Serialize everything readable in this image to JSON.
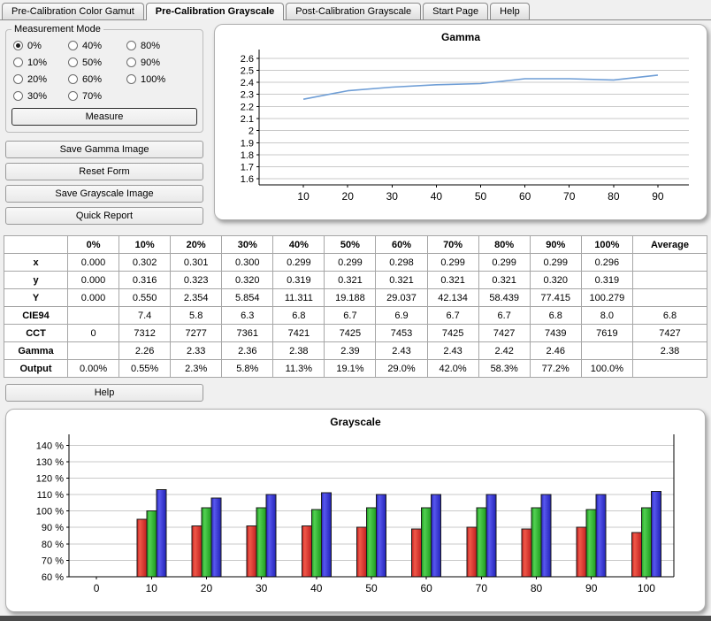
{
  "tabs": [
    {
      "label": "Pre-Calibration Color Gamut",
      "active": false
    },
    {
      "label": "Pre-Calibration Grayscale",
      "active": true
    },
    {
      "label": "Post-Calibration Grayscale",
      "active": false
    },
    {
      "label": "Start Page",
      "active": false
    },
    {
      "label": "Help",
      "active": false
    }
  ],
  "measurement_mode": {
    "title": "Measurement Mode",
    "options": [
      "0%",
      "10%",
      "20%",
      "30%",
      "40%",
      "50%",
      "60%",
      "70%",
      "80%",
      "90%",
      "100%"
    ],
    "selected": "0%",
    "measure_label": "Measure"
  },
  "buttons": {
    "save_gamma": "Save Gamma Image",
    "reset_form": "Reset Form",
    "save_grayscale": "Save Grayscale Image",
    "quick_report": "Quick Report",
    "help": "Help"
  },
  "table": {
    "columns": [
      "",
      "0%",
      "10%",
      "20%",
      "30%",
      "40%",
      "50%",
      "60%",
      "70%",
      "80%",
      "90%",
      "100%",
      "Average"
    ],
    "rows": [
      {
        "label": "x",
        "values": [
          "0.000",
          "0.302",
          "0.301",
          "0.300",
          "0.299",
          "0.299",
          "0.298",
          "0.299",
          "0.299",
          "0.299",
          "0.296",
          ""
        ]
      },
      {
        "label": "y",
        "values": [
          "0.000",
          "0.316",
          "0.323",
          "0.320",
          "0.319",
          "0.321",
          "0.321",
          "0.321",
          "0.321",
          "0.320",
          "0.319",
          ""
        ]
      },
      {
        "label": "Y",
        "values": [
          "0.000",
          "0.550",
          "2.354",
          "5.854",
          "11.311",
          "19.188",
          "29.037",
          "42.134",
          "58.439",
          "77.415",
          "100.279",
          ""
        ]
      },
      {
        "label": "CIE94",
        "values": [
          "",
          "7.4",
          "5.8",
          "6.3",
          "6.8",
          "6.7",
          "6.9",
          "6.7",
          "6.7",
          "6.8",
          "8.0",
          "6.8"
        ]
      },
      {
        "label": "CCT",
        "values": [
          "0",
          "7312",
          "7277",
          "7361",
          "7421",
          "7425",
          "7453",
          "7425",
          "7427",
          "7439",
          "7619",
          "7427"
        ]
      },
      {
        "label": "Gamma",
        "values": [
          "",
          "2.26",
          "2.33",
          "2.36",
          "2.38",
          "2.39",
          "2.43",
          "2.43",
          "2.42",
          "2.46",
          "",
          "2.38"
        ]
      },
      {
        "label": "Output",
        "values": [
          "0.00%",
          "0.55%",
          "2.3%",
          "5.8%",
          "11.3%",
          "19.1%",
          "29.0%",
          "42.0%",
          "58.3%",
          "77.2%",
          "100.0%",
          ""
        ]
      }
    ]
  },
  "chart_data": [
    {
      "type": "line",
      "title": "Gamma",
      "x": [
        10,
        20,
        30,
        40,
        50,
        60,
        70,
        80,
        90
      ],
      "values": [
        2.26,
        2.33,
        2.36,
        2.38,
        2.39,
        2.43,
        2.43,
        2.42,
        2.46
      ],
      "xticks": [
        10,
        20,
        30,
        40,
        50,
        60,
        70,
        80,
        90
      ],
      "yticks": [
        1.6,
        1.7,
        1.8,
        1.9,
        2.0,
        2.1,
        2.2,
        2.3,
        2.4,
        2.5,
        2.6
      ],
      "ylim": [
        1.6,
        2.6
      ],
      "xlim": [
        0,
        97
      ],
      "line_color": "#6f9ed6",
      "grid": true,
      "legend": "none"
    },
    {
      "type": "bar",
      "title": "Grayscale",
      "categories": [
        0,
        10,
        20,
        30,
        40,
        50,
        60,
        70,
        80,
        90,
        100
      ],
      "series": [
        {
          "name": "red",
          "color": "#c02020",
          "color_light": "#f05848",
          "values": [
            null,
            95,
            91,
            91,
            91,
            90,
            89,
            90,
            89,
            90,
            87
          ]
        },
        {
          "name": "green",
          "color": "#1d9b1d",
          "color_light": "#52d052",
          "values": [
            null,
            100,
            102,
            102,
            101,
            102,
            102,
            102,
            102,
            101,
            102
          ]
        },
        {
          "name": "blue",
          "color": "#2222b8",
          "color_light": "#5858ee",
          "values": [
            null,
            113,
            108,
            110,
            111,
            110,
            110,
            110,
            110,
            110,
            112
          ]
        }
      ],
      "yticks": [
        60,
        70,
        80,
        90,
        100,
        110,
        120,
        130,
        140
      ],
      "ytick_suffix": " %",
      "ylim": [
        60,
        140
      ],
      "baseline": 60,
      "grid": true
    }
  ]
}
